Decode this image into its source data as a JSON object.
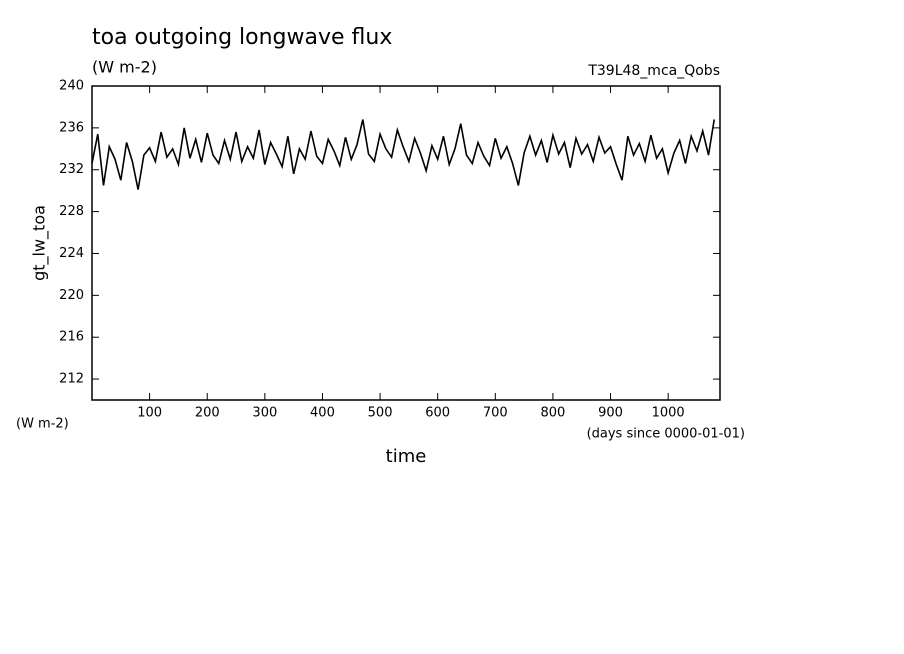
{
  "chart_data": {
    "type": "line",
    "title": "toa outgoing longwave flux",
    "subtitle": "(W m-2)",
    "annotation": "T39L48_mca_Qobs",
    "ylabel": "gt_lw_toa",
    "xlabel": "time",
    "yunits": "(W m-2)",
    "xunits": "(days since 0000-01-01)",
    "x": [
      0,
      10,
      20,
      30,
      40,
      50,
      60,
      70,
      80,
      90,
      100,
      110,
      120,
      130,
      140,
      150,
      160,
      170,
      180,
      190,
      200,
      210,
      220,
      230,
      240,
      250,
      260,
      270,
      280,
      290,
      300,
      310,
      320,
      330,
      340,
      350,
      360,
      370,
      380,
      390,
      400,
      410,
      420,
      430,
      440,
      450,
      460,
      470,
      480,
      490,
      500,
      510,
      520,
      530,
      540,
      550,
      560,
      570,
      580,
      590,
      600,
      610,
      620,
      630,
      640,
      650,
      660,
      670,
      680,
      690,
      700,
      710,
      720,
      730,
      740,
      750,
      760,
      770,
      780,
      790,
      800,
      810,
      820,
      830,
      840,
      850,
      860,
      870,
      880,
      890,
      900,
      910,
      920,
      930,
      940,
      950,
      960,
      970,
      980,
      990,
      1000,
      1010,
      1020,
      1030,
      1040,
      1050,
      1060,
      1070,
      1080
    ],
    "series": [
      {
        "name": "gt_lw_toa",
        "color": "#000000",
        "values": [
          232.6,
          235.4,
          230.5,
          234.2,
          233.0,
          231.0,
          234.6,
          232.8,
          230.1,
          233.4,
          234.1,
          232.8,
          235.6,
          233.2,
          234.0,
          232.5,
          236.0,
          233.1,
          234.9,
          232.7,
          235.5,
          233.4,
          232.6,
          234.8,
          233.0,
          235.6,
          232.8,
          234.2,
          233.1,
          235.8,
          232.5,
          234.6,
          233.5,
          232.3,
          235.2,
          231.6,
          234.0,
          233.0,
          235.7,
          233.3,
          232.6,
          234.9,
          233.8,
          232.4,
          235.1,
          233.0,
          234.4,
          236.8,
          233.5,
          232.8,
          235.4,
          234.0,
          233.2,
          235.8,
          234.2,
          232.8,
          235.0,
          233.6,
          231.9,
          234.3,
          233.0,
          235.2,
          232.5,
          234.0,
          236.4,
          233.4,
          232.6,
          234.6,
          233.3,
          232.4,
          235.0,
          233.1,
          234.2,
          232.6,
          230.5,
          233.6,
          235.2,
          233.4,
          234.8,
          232.7,
          235.3,
          233.5,
          234.6,
          232.2,
          235.0,
          233.5,
          234.4,
          232.8,
          235.1,
          233.6,
          234.2,
          232.5,
          231.0,
          235.2,
          233.4,
          234.5,
          232.8,
          235.3,
          233.1,
          234.0,
          231.7,
          233.6,
          234.8,
          232.6,
          235.2,
          233.8,
          235.7,
          233.4,
          236.8
        ]
      }
    ],
    "xlim": [
      0,
      1090
    ],
    "xticks": [
      100,
      200,
      300,
      400,
      500,
      600,
      700,
      800,
      900,
      1000
    ],
    "ylim": [
      210,
      240
    ],
    "yticks": [
      212,
      216,
      220,
      224,
      228,
      232,
      236,
      240
    ]
  }
}
